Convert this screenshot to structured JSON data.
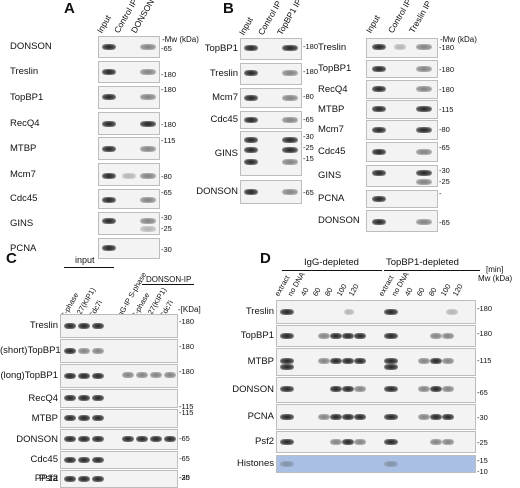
{
  "panel_letters": {
    "a": "A",
    "b": "B",
    "c": "C",
    "d": "D"
  },
  "panel_a": {
    "lanes": [
      "Input",
      "Control IP",
      "DONSON IP"
    ],
    "mw_unit": "Mw (kDa)",
    "rows": [
      {
        "label": "DONSON",
        "mw": "65"
      },
      {
        "label": "Treslin",
        "mw": "180"
      },
      {
        "label": "TopBP1",
        "mw": "180"
      },
      {
        "label": "RecQ4",
        "mw": "180"
      },
      {
        "label": "MTBP",
        "mw": "115"
      },
      {
        "label": "Mcm7",
        "mw": "80"
      },
      {
        "label": "Cdc45",
        "mw": "65"
      },
      {
        "label": "GINS",
        "mw1": "30",
        "mw2": "25"
      },
      {
        "label": "PCNA",
        "mw": "30"
      }
    ]
  },
  "panel_b1": {
    "lanes": [
      "Input",
      "Control IP",
      "TopBP1 IP"
    ],
    "rows": [
      {
        "label": "TopBP1",
        "mw": "180"
      },
      {
        "label": "Treslin",
        "mw": "180"
      },
      {
        "label": "Mcm7",
        "mw": "80"
      },
      {
        "label": "Cdc45",
        "mw": "65"
      },
      {
        "label": "GINS",
        "mw1": "30",
        "mw2": "25",
        "mw3": "15"
      },
      {
        "label": "DONSON",
        "mw": "65"
      }
    ]
  },
  "panel_b2": {
    "lanes": [
      "Input",
      "Control IP",
      "Treslin IP"
    ],
    "mw_unit": "Mw (kDa)",
    "rows": [
      {
        "label": "Treslin",
        "mw": "180"
      },
      {
        "label": "TopBP1",
        "mw": "180"
      },
      {
        "label": "RecQ4",
        "mw": "180"
      },
      {
        "label": "MTBP",
        "mw": "115"
      },
      {
        "label": "Mcm7",
        "mw": "80"
      },
      {
        "label": "Cdc45",
        "mw": "65"
      },
      {
        "label": "GINS",
        "mw1": "30",
        "mw2": "25"
      },
      {
        "label": "PCNA",
        "mw": ""
      },
      {
        "label": "DONSON",
        "mw": "65"
      }
    ]
  },
  "panel_c": {
    "group_input": "input",
    "group_ip": "DONSON-IP",
    "lanes": [
      "S-phase",
      "p27(KIP1)",
      "Cdc7i",
      "IgG-IP S-phase",
      "S-phase",
      "p27(KIP1)",
      "Cdc7i"
    ],
    "mw_unit": "[KDa]",
    "rows": [
      {
        "label": "Treslin",
        "mw": "180"
      },
      {
        "label": "(short)TopBP1",
        "mw": "180"
      },
      {
        "label": "(long)TopBP1",
        "mw": "180"
      },
      {
        "label": "RecQ4",
        "mw": "115"
      },
      {
        "label": "MTBP",
        "mw": "115"
      },
      {
        "label": "DONSON",
        "mw": "65"
      },
      {
        "label": "Cdc45",
        "mw": "65"
      },
      {
        "label": "PP1a",
        "mw": "30"
      },
      {
        "label": "Psf2",
        "mw": "25"
      }
    ]
  },
  "panel_d": {
    "group_igg": "IgG-depleted",
    "group_topbp1": "TopBP1-depleted",
    "time_unit": "[min]",
    "mw_unit": "Mw (kDa)",
    "lanes": [
      "extract",
      "no DNA",
      "40",
      "60",
      "80",
      "100",
      "120",
      "extract",
      "no DNA",
      "40",
      "60",
      "80",
      "100",
      "120"
    ],
    "rows": [
      {
        "label": "Treslin",
        "mw": "180"
      },
      {
        "label": "TopBP1",
        "mw": "180"
      },
      {
        "label": "MTBP",
        "mw": "115"
      },
      {
        "label": "DONSON",
        "mw": "65"
      },
      {
        "label": "PCNA",
        "mw": "30"
      },
      {
        "label": "Psf2",
        "mw": "25"
      },
      {
        "label": "Histones",
        "mw1": "15",
        "mw2": "10"
      }
    ]
  }
}
